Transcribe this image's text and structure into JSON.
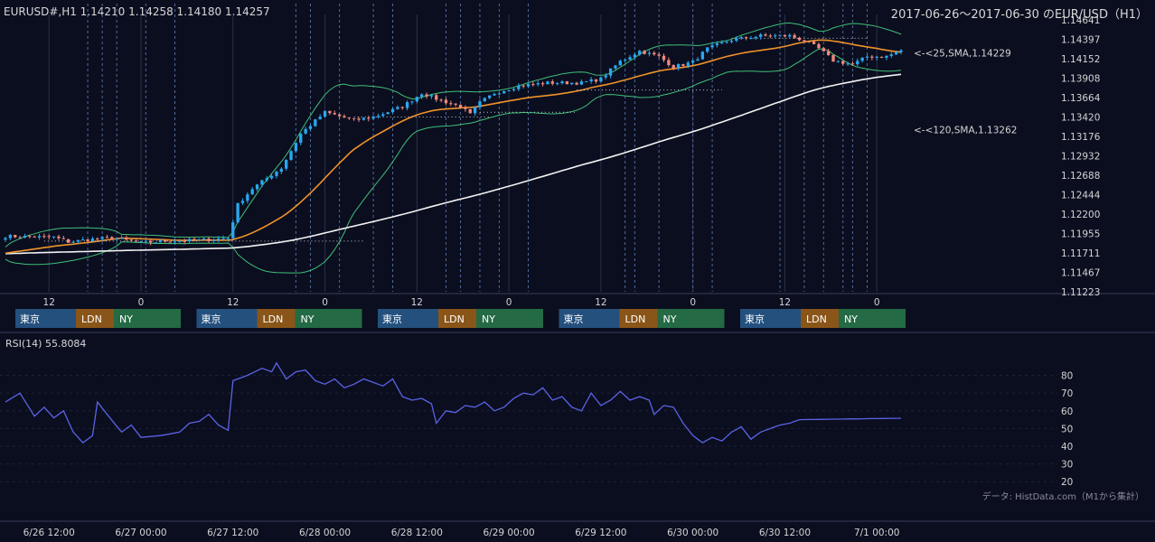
{
  "header": {
    "symbol_info": "EURUSD#,H1 1.14210 1.14258 1.14180 1.14257",
    "date_range": "2017-06-26～2017-06-30 のEUR/USD（H1）"
  },
  "colors": {
    "background": "#0b0e1f",
    "bull": "#29a8f0",
    "bear": "#f08a7e",
    "sma25": "#f0922a",
    "sma120": "#f2f2f2",
    "bollinger": "#3fbf79",
    "rsi": "#5a63e6",
    "tokyo": "#24507e",
    "london": "#8a5518",
    "newyork": "#246a44"
  },
  "chart_data": [
    {
      "type": "candlestick",
      "title": "",
      "y_ticks": [
        1.11223,
        1.11467,
        1.11711,
        1.11955,
        1.122,
        1.12444,
        1.12688,
        1.12932,
        1.13176,
        1.1342,
        1.13664,
        1.13908,
        1.14152,
        1.14397,
        1.14641
      ],
      "ylim": [
        1.11223,
        1.14641
      ],
      "x_tick_labels": [
        "12",
        "0",
        "12",
        "0",
        "12",
        "0",
        "12",
        "0",
        "12",
        "0"
      ],
      "x_date_labels": [
        "6/26 12:00",
        "6/27 00:00",
        "6/27 12:00",
        "6/28 00:00",
        "6/28 12:00",
        "6/29 00:00",
        "6/29 12:00",
        "6/30 00:00",
        "6/30 12:00",
        "7/1 00:00"
      ],
      "series": [
        {
          "name": "25,SMA",
          "last": 1.14229,
          "label": "<-<25,SMA,1.14229"
        },
        {
          "name": "120,SMA",
          "last": 1.13262,
          "label": "<-<120,SMA,1.13262"
        }
      ],
      "annotations": [
        "<-<25,SMA,1.14229",
        "<-<120,SMA,1.13262"
      ],
      "sessions": [
        "東京",
        "LDN",
        "NY"
      ],
      "close_anchors": [
        [
          0,
          1.1192
        ],
        [
          10,
          1.1191
        ],
        [
          13,
          1.1185
        ],
        [
          17,
          1.1188
        ],
        [
          22,
          1.119
        ],
        [
          28,
          1.1184
        ],
        [
          33,
          1.1186
        ],
        [
          40,
          1.1187
        ],
        [
          46,
          1.119
        ],
        [
          48,
          1.1232
        ],
        [
          51,
          1.1252
        ],
        [
          57,
          1.1278
        ],
        [
          61,
          1.1321
        ],
        [
          66,
          1.1348
        ],
        [
          72,
          1.1338
        ],
        [
          76,
          1.1342
        ],
        [
          82,
          1.1355
        ],
        [
          86,
          1.1372
        ],
        [
          89,
          1.1365
        ],
        [
          94,
          1.1355
        ],
        [
          96,
          1.1345
        ],
        [
          98,
          1.136
        ],
        [
          101,
          1.1372
        ],
        [
          106,
          1.1381
        ],
        [
          112,
          1.1385
        ],
        [
          119,
          1.1385
        ],
        [
          123,
          1.139
        ],
        [
          127,
          1.1412
        ],
        [
          131,
          1.1425
        ],
        [
          135,
          1.1418
        ],
        [
          138,
          1.1405
        ],
        [
          142,
          1.1411
        ],
        [
          145,
          1.1428
        ],
        [
          150,
          1.1439
        ],
        [
          156,
          1.1444
        ],
        [
          162,
          1.1444
        ],
        [
          165,
          1.1438
        ],
        [
          168,
          1.1428
        ],
        [
          171,
          1.1413
        ],
        [
          175,
          1.1408
        ],
        [
          178,
          1.1418
        ],
        [
          182,
          1.1418
        ],
        [
          185,
          1.14257
        ]
      ]
    },
    {
      "type": "line",
      "title": "RSI(14) 55.8084",
      "y_ticks": [
        20,
        30,
        40,
        50,
        60,
        70,
        80
      ],
      "ylim": [
        14,
        92
      ],
      "series": [
        {
          "name": "RSI(14)",
          "last": 55.8084
        }
      ],
      "values_anchors": [
        [
          0,
          65
        ],
        [
          3,
          70
        ],
        [
          6,
          57
        ],
        [
          8,
          62
        ],
        [
          10,
          56
        ],
        [
          12,
          60
        ],
        [
          14,
          48
        ],
        [
          16,
          42
        ],
        [
          18,
          46
        ],
        [
          19,
          65
        ],
        [
          21,
          58
        ],
        [
          24,
          48
        ],
        [
          26,
          52
        ],
        [
          28,
          45
        ],
        [
          32,
          46
        ],
        [
          36,
          48
        ],
        [
          38,
          53
        ],
        [
          40,
          54
        ],
        [
          42,
          58
        ],
        [
          44,
          52
        ],
        [
          46,
          49
        ],
        [
          47,
          77
        ],
        [
          50,
          80
        ],
        [
          53,
          84
        ],
        [
          55,
          82
        ],
        [
          56,
          87
        ],
        [
          58,
          78
        ],
        [
          60,
          82
        ],
        [
          62,
          83
        ],
        [
          64,
          77
        ],
        [
          66,
          75
        ],
        [
          68,
          78
        ],
        [
          70,
          73
        ],
        [
          72,
          75
        ],
        [
          74,
          78
        ],
        [
          76,
          76
        ],
        [
          78,
          74
        ],
        [
          80,
          78
        ],
        [
          82,
          68
        ],
        [
          84,
          66
        ],
        [
          86,
          67
        ],
        [
          88,
          64
        ],
        [
          89,
          53
        ],
        [
          91,
          60
        ],
        [
          93,
          59
        ],
        [
          95,
          63
        ],
        [
          97,
          62
        ],
        [
          99,
          65
        ],
        [
          101,
          60
        ],
        [
          103,
          62
        ],
        [
          105,
          67
        ],
        [
          107,
          70
        ],
        [
          109,
          69
        ],
        [
          111,
          73
        ],
        [
          113,
          66
        ],
        [
          115,
          68
        ],
        [
          117,
          62
        ],
        [
          119,
          60
        ],
        [
          121,
          70
        ],
        [
          123,
          63
        ],
        [
          125,
          66
        ],
        [
          127,
          71
        ],
        [
          129,
          66
        ],
        [
          131,
          68
        ],
        [
          133,
          66
        ],
        [
          134,
          58
        ],
        [
          136,
          63
        ],
        [
          138,
          62
        ],
        [
          140,
          53
        ],
        [
          142,
          46
        ],
        [
          144,
          42
        ],
        [
          146,
          45
        ],
        [
          148,
          43
        ],
        [
          150,
          48
        ],
        [
          152,
          51
        ],
        [
          154,
          44
        ],
        [
          156,
          48
        ],
        [
          158,
          50
        ],
        [
          160,
          52
        ],
        [
          162,
          53
        ],
        [
          164,
          55
        ],
        [
          185,
          55.8084
        ]
      ]
    }
  ],
  "source_note": "データ: HistData.com（M1から集計）"
}
